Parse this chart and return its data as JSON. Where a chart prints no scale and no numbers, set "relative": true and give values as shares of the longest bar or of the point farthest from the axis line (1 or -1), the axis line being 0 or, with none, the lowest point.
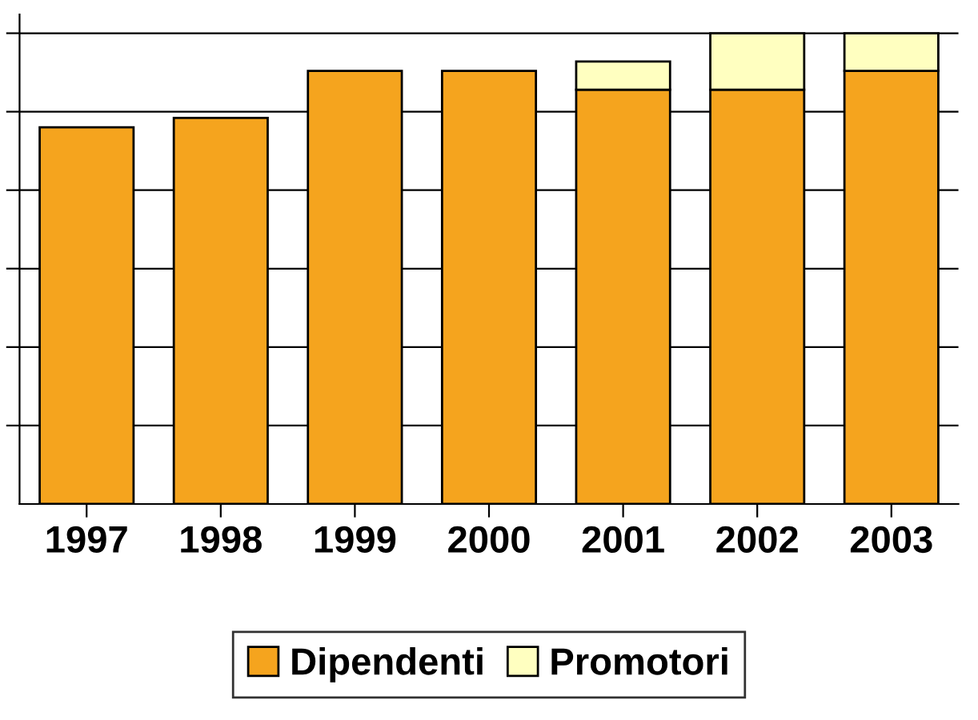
{
  "chart_data": {
    "type": "bar",
    "stacked": true,
    "relative": true,
    "grid": "y",
    "legend": "bottom",
    "categories": [
      "1997",
      "1998",
      "1999",
      "2000",
      "2001",
      "2002",
      "2003"
    ],
    "series": [
      {
        "name": "Dipendenti",
        "color": "#f5a41e",
        "values": [
          0.8,
          0.82,
          0.92,
          0.92,
          0.88,
          0.88,
          0.92
        ]
      },
      {
        "name": "Promotori",
        "color": "#ffffc0",
        "values": [
          0,
          0,
          0,
          0,
          0.06,
          0.12,
          0.08
        ]
      }
    ]
  }
}
